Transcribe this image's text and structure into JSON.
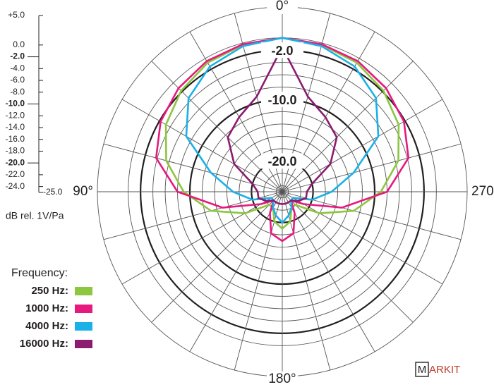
{
  "chart_data": {
    "type": "polar",
    "axis_label": "dB rel. 1V/Pa",
    "legend_title": "Frequency:",
    "ylim": [
      -25,
      5
    ],
    "yticks": [
      {
        "value": 5,
        "label": "+5.0"
      },
      {
        "value": 0,
        "label": "0.0"
      },
      {
        "value": -2,
        "label": "-2.0"
      },
      {
        "value": -4,
        "label": "-4.0"
      },
      {
        "value": -6,
        "label": "-6.0"
      },
      {
        "value": -8,
        "label": "-8.0"
      },
      {
        "value": -10,
        "label": "-10.0"
      },
      {
        "value": -12,
        "label": "-12.0"
      },
      {
        "value": -14,
        "label": "-14.0"
      },
      {
        "value": -16,
        "label": "-16.0"
      },
      {
        "value": -18,
        "label": "-18.0"
      },
      {
        "value": -20,
        "label": "-20.0"
      },
      {
        "value": -22,
        "label": "-22.0"
      },
      {
        "value": -24,
        "label": "-24.0"
      },
      {
        "value": -25,
        "label": "-25.0"
      }
    ],
    "ring_labels": [
      {
        "value": -2,
        "label": "-2.0"
      },
      {
        "value": -10,
        "label": "-10.0"
      },
      {
        "value": -20,
        "label": "-20.0"
      }
    ],
    "angle_ticks": [
      {
        "value": 0,
        "label": "0°"
      },
      {
        "value": 90,
        "label": "90°"
      },
      {
        "value": 180,
        "label": "180°"
      },
      {
        "value": 270,
        "label": "270°"
      }
    ],
    "angles": [
      0,
      15,
      30,
      45,
      60,
      75,
      90,
      105,
      120,
      135,
      150,
      165,
      180,
      195,
      210,
      225,
      240,
      255,
      270,
      285,
      300,
      315,
      330,
      345
    ],
    "series": [
      {
        "name": "250 Hz:",
        "color": "#8dc63f",
        "values": [
          0,
          -0.3,
          -0.8,
          -1.8,
          -3.2,
          -5.5,
          -9,
          -13,
          -18,
          -22,
          -22,
          -20,
          -19,
          -20,
          -22,
          -22,
          -18,
          -13,
          -9,
          -5.5,
          -3.2,
          -1.8,
          -0.8,
          -0.3
        ]
      },
      {
        "name": "1000 Hz:",
        "color": "#e6197e",
        "values": [
          0,
          -0.2,
          -0.5,
          -1.2,
          -2.2,
          -3.8,
          -8,
          -15,
          -21,
          -23,
          -21,
          -18,
          -17,
          -18,
          -21,
          -23,
          -21,
          -15,
          -8,
          -3.8,
          -2.2,
          -1.2,
          -0.5,
          -0.2
        ]
      },
      {
        "name": "4000 Hz:",
        "color": "#1ab0e8",
        "values": [
          0,
          -0.5,
          -1.5,
          -3.5,
          -7,
          -13,
          -17,
          -20,
          -23,
          -23,
          -22,
          -21,
          -20,
          -21,
          -22,
          -23,
          -23,
          -20,
          -17,
          -13,
          -7,
          -3.5,
          -1.5,
          -0.5
        ]
      },
      {
        "name": "16000 Hz:",
        "color": "#8b1c6e",
        "values": [
          -1.5,
          -9,
          -11,
          -12.5,
          -16,
          -20,
          -21,
          -21,
          -22,
          -23,
          -23,
          -23,
          -23,
          -23,
          -23,
          -23,
          -22,
          -21,
          -21,
          -20,
          -16,
          -12.5,
          -11,
          -9
        ]
      }
    ],
    "watermark": [
      "M",
      "ARKIT"
    ]
  }
}
